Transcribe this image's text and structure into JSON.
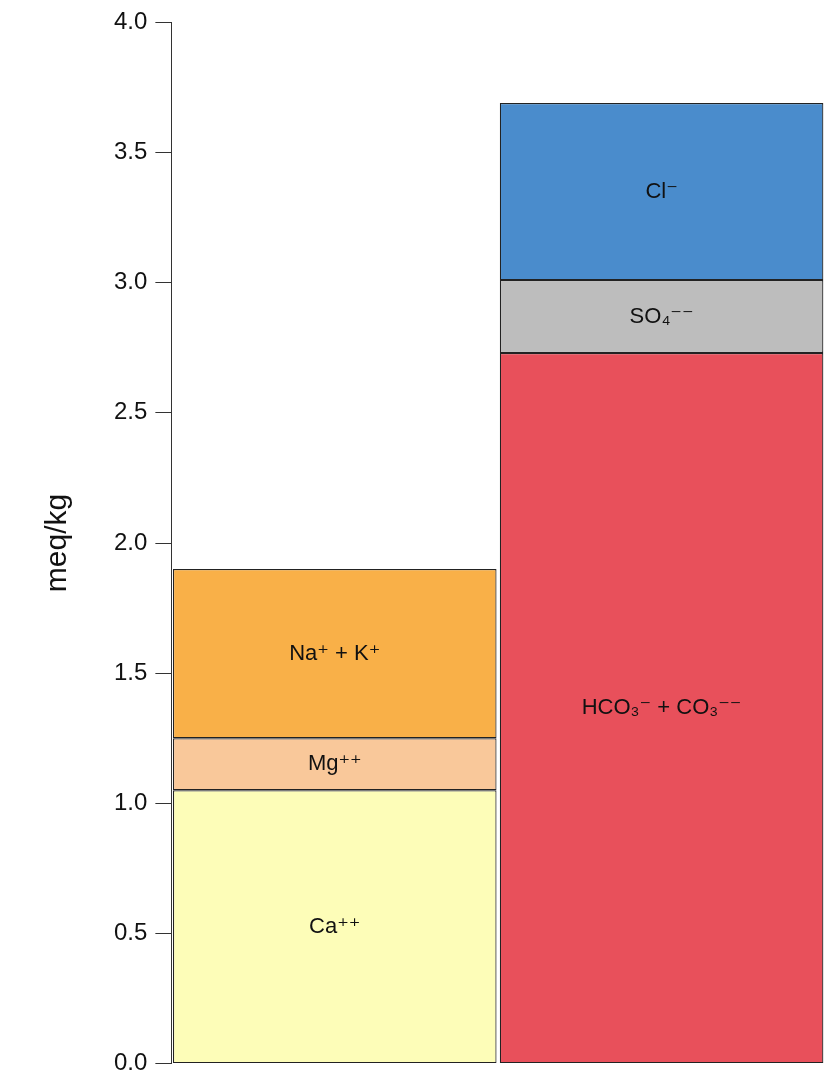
{
  "chart_data": {
    "type": "bar",
    "stacked": true,
    "ylabel": "meq/kg",
    "categories": [
      null,
      null
    ],
    "series": [
      {
        "name": "Ca⁺⁺",
        "color": "#fdfdb8",
        "values": [
          1.05,
          null
        ]
      },
      {
        "name": "Mg⁺⁺",
        "color": "#f9c89a",
        "values": [
          0.2,
          null
        ]
      },
      {
        "name": "Na⁺ + K⁺",
        "color": "#f9b048",
        "values": [
          0.65,
          null
        ]
      },
      {
        "name": "HCO₃⁻ + CO₃⁻⁻",
        "color": "#e8505b",
        "values": [
          null,
          2.73
        ]
      },
      {
        "name": "SO₄⁻⁻",
        "color": "#bdbdbd",
        "values": [
          null,
          0.28
        ]
      },
      {
        "name": "Cl⁻",
        "color": "#4a8ccc",
        "values": [
          null,
          0.68
        ]
      }
    ],
    "ylim": [
      0,
      4
    ],
    "yticks": [
      {
        "value": 0,
        "label": "0.0"
      },
      0.5,
      {
        "value": 1,
        "label": "1.0"
      },
      1.5,
      {
        "value": 2,
        "label": "2.0"
      },
      2.5,
      {
        "value": 3,
        "label": "3.0"
      },
      3.5,
      {
        "value": 4,
        "label": "4.0"
      }
    ]
  }
}
